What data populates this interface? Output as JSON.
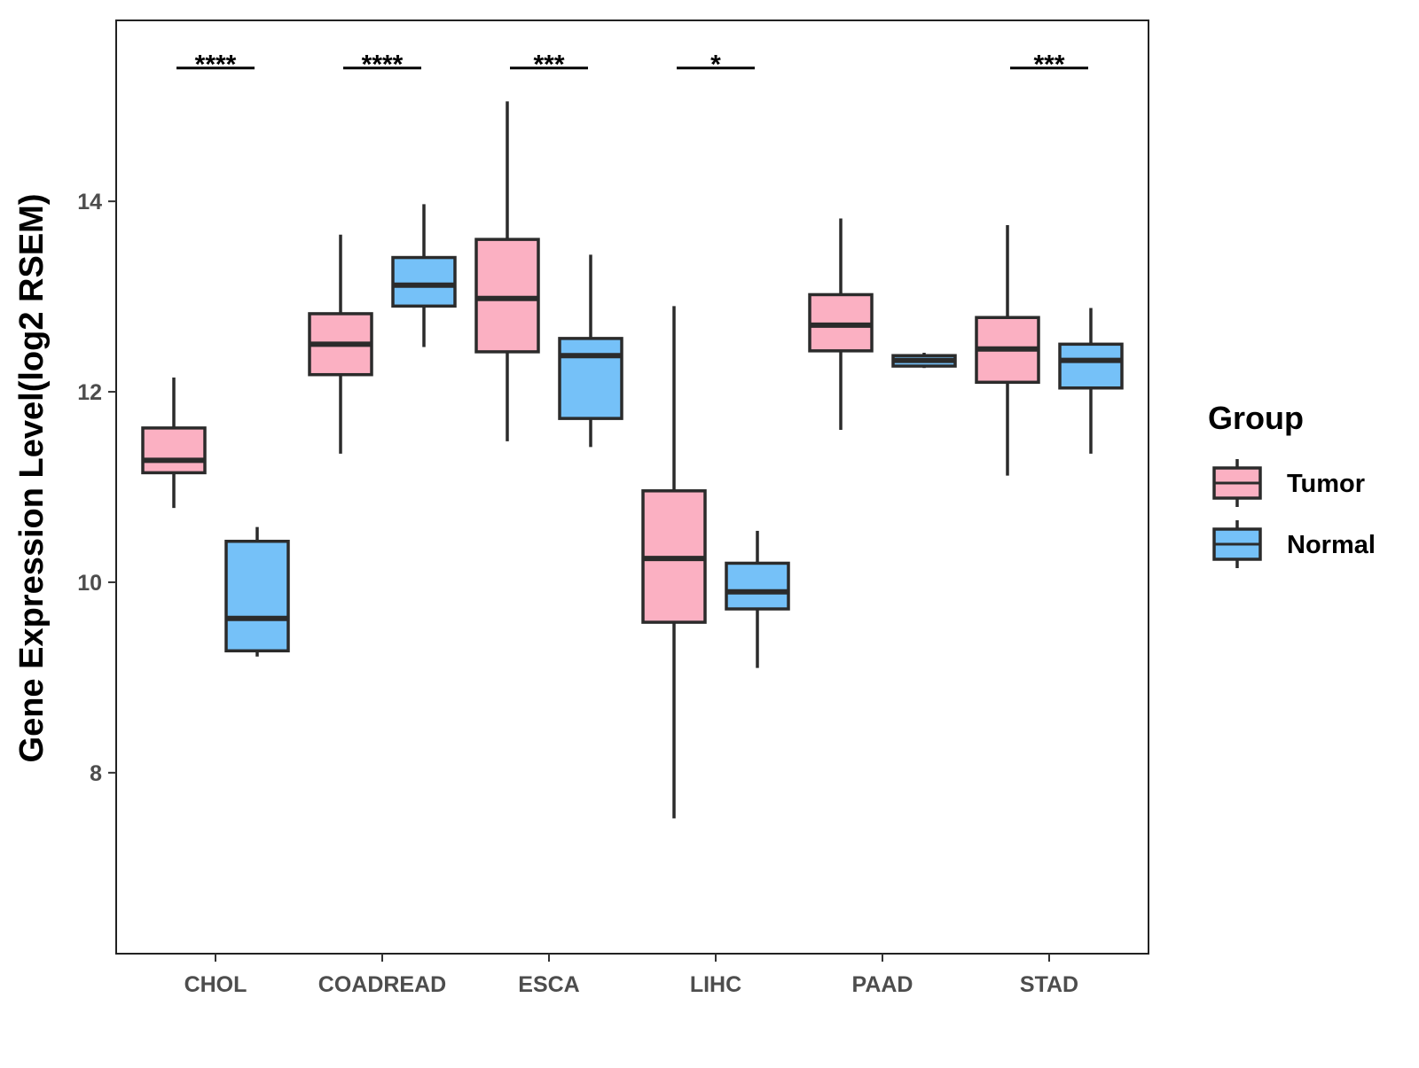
{
  "chart_data": {
    "type": "box",
    "title": "",
    "xlabel": "",
    "ylabel": "Gene Expression Level(log2 RSEM)",
    "ylim": [
      6.1,
      15.9
    ],
    "yticks": [
      8,
      10,
      12,
      14
    ],
    "ytick_labels": [
      "8",
      "10",
      "12",
      "14"
    ],
    "grid": false,
    "categories": [
      "CHOL",
      "COADREAD",
      "ESCA",
      "LIHC",
      "PAAD",
      "STAD"
    ],
    "legend": {
      "title": "Group",
      "position": "right",
      "entries": [
        "Tumor",
        "Normal"
      ]
    },
    "series": [
      {
        "name": "Tumor",
        "color": "#FBB0C2",
        "boxes": [
          {
            "category": "CHOL",
            "whisker_low": 10.78,
            "q1": 11.15,
            "median": 11.28,
            "q3": 11.62,
            "whisker_high": 12.15
          },
          {
            "category": "COADREAD",
            "whisker_low": 11.35,
            "q1": 12.18,
            "median": 12.5,
            "q3": 12.82,
            "whisker_high": 13.65
          },
          {
            "category": "ESCA",
            "whisker_low": 11.48,
            "q1": 12.42,
            "median": 12.98,
            "q3": 13.6,
            "whisker_high": 15.05
          },
          {
            "category": "LIHC",
            "whisker_low": 7.52,
            "q1": 9.58,
            "median": 10.25,
            "q3": 10.96,
            "whisker_high": 12.9
          },
          {
            "category": "PAAD",
            "whisker_low": 11.6,
            "q1": 12.43,
            "median": 12.7,
            "q3": 13.02,
            "whisker_high": 13.82
          },
          {
            "category": "STAD",
            "whisker_low": 11.12,
            "q1": 12.1,
            "median": 12.45,
            "q3": 12.78,
            "whisker_high": 13.75
          }
        ]
      },
      {
        "name": "Normal",
        "color": "#75C1F8",
        "boxes": [
          {
            "category": "CHOL",
            "whisker_low": 9.22,
            "q1": 9.28,
            "median": 9.62,
            "q3": 10.43,
            "whisker_high": 10.58
          },
          {
            "category": "COADREAD",
            "whisker_low": 12.47,
            "q1": 12.9,
            "median": 13.12,
            "q3": 13.41,
            "whisker_high": 13.97
          },
          {
            "category": "ESCA",
            "whisker_low": 11.42,
            "q1": 11.72,
            "median": 12.38,
            "q3": 12.56,
            "whisker_high": 13.44
          },
          {
            "category": "LIHC",
            "whisker_low": 9.1,
            "q1": 9.72,
            "median": 9.9,
            "q3": 10.2,
            "whisker_high": 10.54
          },
          {
            "category": "PAAD",
            "whisker_low": 12.25,
            "q1": 12.27,
            "median": 12.33,
            "q3": 12.38,
            "whisker_high": 12.41
          },
          {
            "category": "STAD",
            "whisker_low": 11.35,
            "q1": 12.04,
            "median": 12.33,
            "q3": 12.5,
            "whisker_high": 12.88
          }
        ]
      }
    ],
    "significance": [
      {
        "category": "CHOL",
        "label": "****"
      },
      {
        "category": "COADREAD",
        "label": "****"
      },
      {
        "category": "ESCA",
        "label": "***"
      },
      {
        "category": "LIHC",
        "label": "*"
      },
      {
        "category": "PAAD",
        "label": ""
      },
      {
        "category": "STAD",
        "label": "***"
      }
    ],
    "significance_bar_y": 15.4
  }
}
